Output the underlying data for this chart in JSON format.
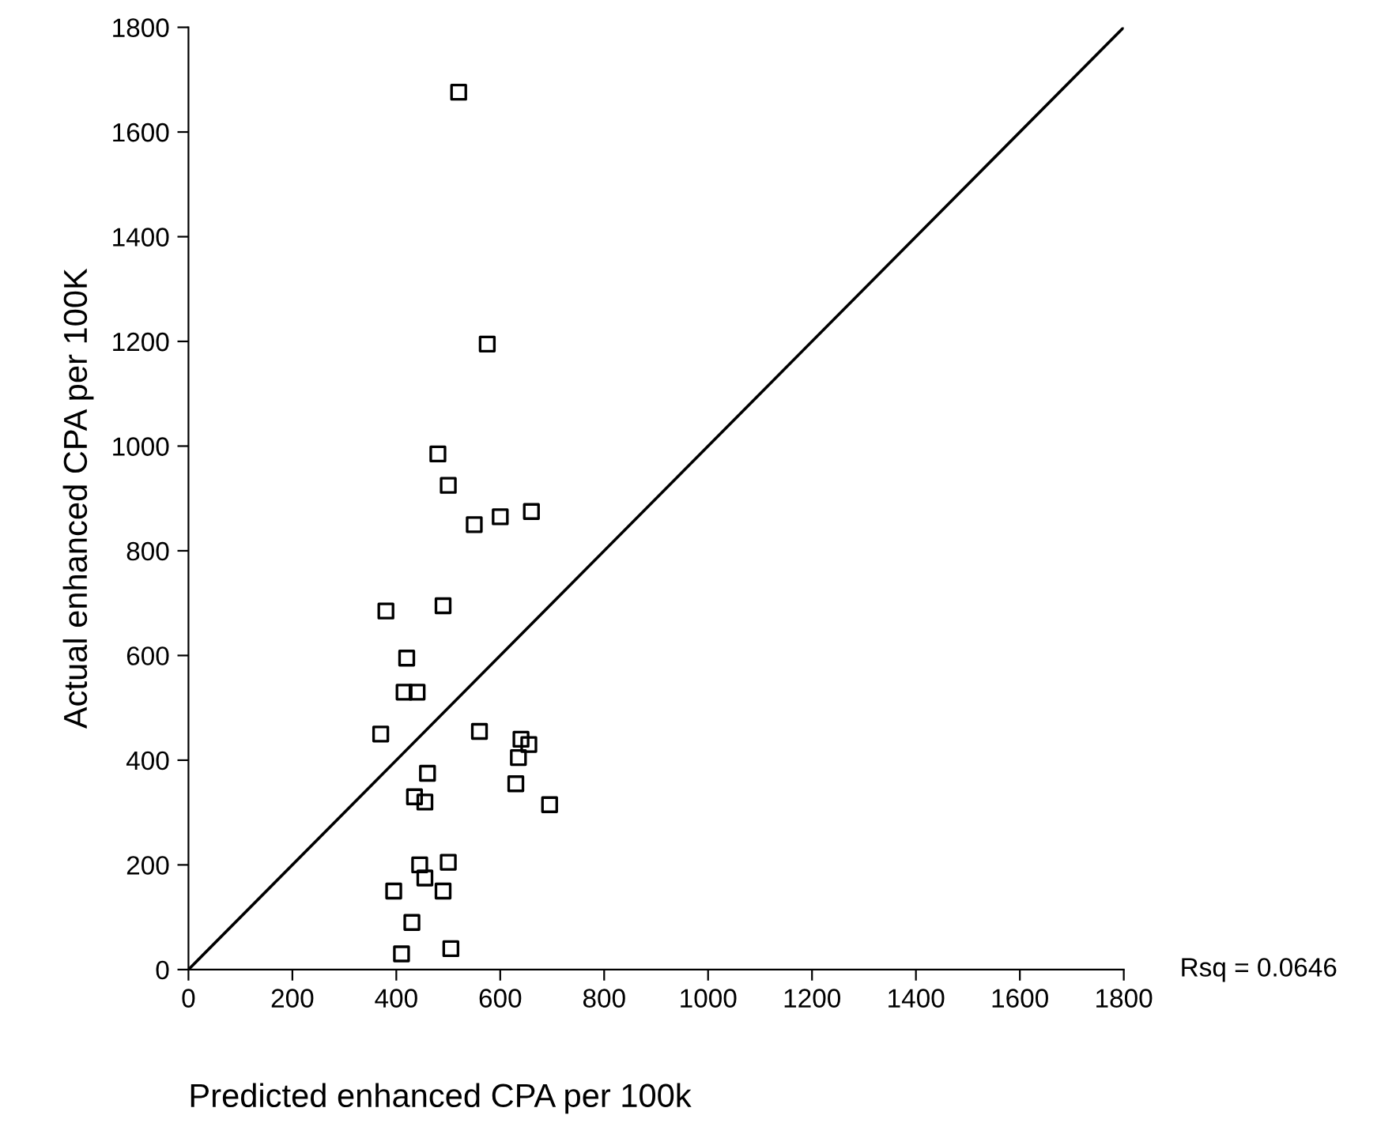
{
  "chart_data": {
    "type": "scatter",
    "xlabel": "Predicted enhanced CPA per 100k",
    "ylabel": "Actual enhanced CPA per 100K",
    "annotations": [
      "Rsq = 0.0646"
    ],
    "xlim": [
      0,
      1800
    ],
    "ylim": [
      0,
      1800
    ],
    "xticks": [
      0,
      200,
      400,
      600,
      800,
      1000,
      1200,
      1400,
      1600,
      1800
    ],
    "yticks": [
      0,
      200,
      400,
      600,
      800,
      1000,
      1200,
      1400,
      1600,
      1800
    ],
    "grid": false,
    "legend": false,
    "series": [
      {
        "marker": "square",
        "color": "#000000",
        "x": [
          520,
          575,
          480,
          500,
          600,
          660,
          550,
          380,
          490,
          420,
          415,
          440,
          370,
          560,
          640,
          655,
          635,
          630,
          695,
          460,
          435,
          455,
          445,
          500,
          455,
          395,
          490,
          430,
          410,
          505
        ],
        "values": [
          1676,
          1195,
          985,
          925,
          865,
          875,
          850,
          685,
          695,
          595,
          530,
          530,
          450,
          455,
          440,
          430,
          405,
          355,
          315,
          375,
          330,
          320,
          200,
          205,
          175,
          150,
          150,
          90,
          30,
          40
        ]
      },
      {
        "type": "line",
        "marker": "none",
        "color": "#000000",
        "line_style": "solid",
        "x": [
          0,
          1800
        ],
        "values": [
          0,
          1800
        ]
      }
    ]
  }
}
